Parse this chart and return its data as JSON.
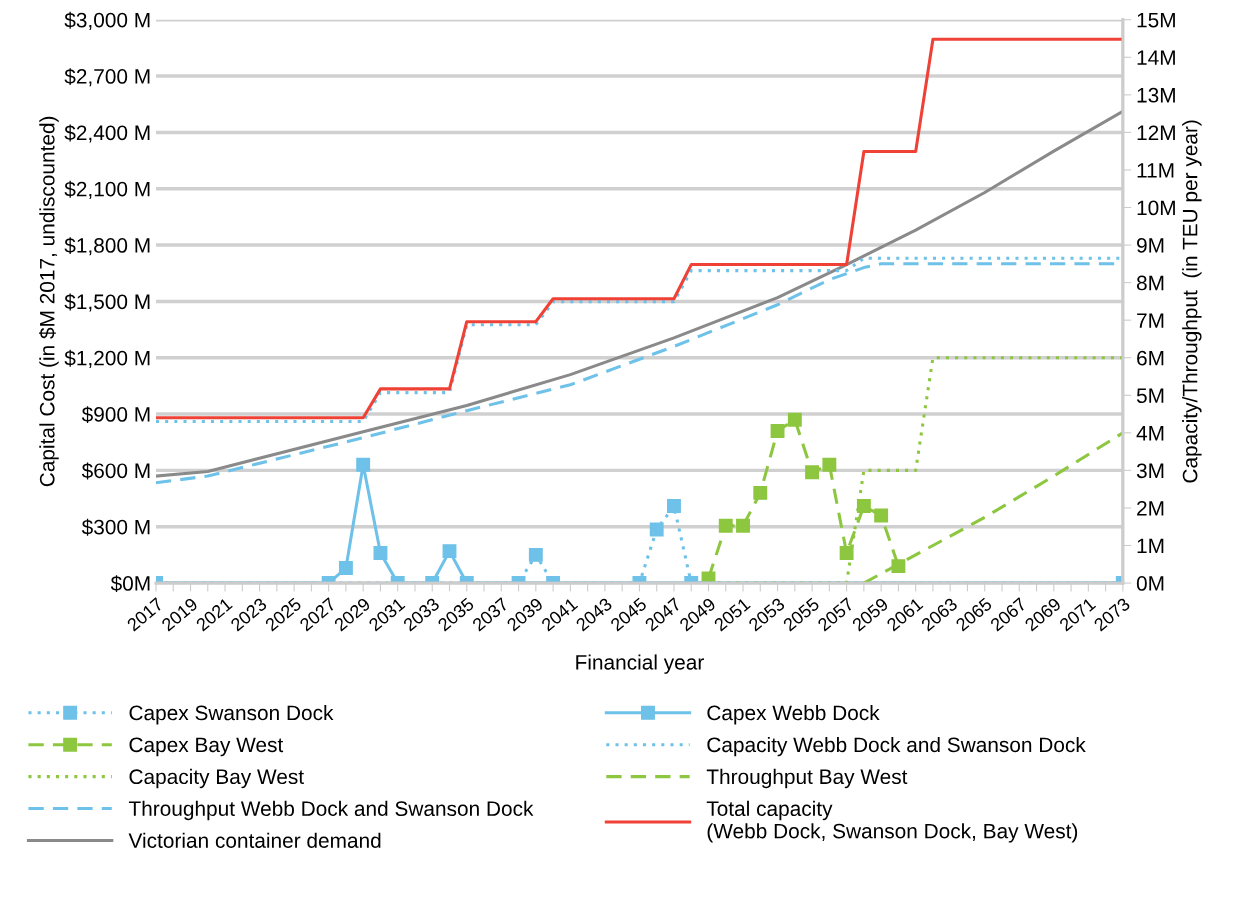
{
  "chart_data": {
    "type": "line",
    "xlabel": "Financial year",
    "ylabel": "Capital Cost (in $M 2017, undiscounted)",
    "y2label": "Capacity/Throughput  (in TEU per year)",
    "xlim": [
      2017,
      2073
    ],
    "xticks": [
      2017,
      {
        "value": 2018,
        "label": null
      },
      2019,
      {
        "value": 2020,
        "label": null
      },
      2021,
      {
        "value": 2022,
        "label": null
      },
      2023,
      {
        "value": 2024,
        "label": null
      },
      2025,
      {
        "value": 2026,
        "label": null
      },
      2027,
      {
        "value": 2028,
        "label": null
      },
      2029,
      {
        "value": 2030,
        "label": null
      },
      2031,
      {
        "value": 2032,
        "label": null
      },
      2033,
      {
        "value": 2034,
        "label": null
      },
      2035,
      {
        "value": 2036,
        "label": null
      },
      2037,
      {
        "value": 2038,
        "label": null
      },
      2039,
      {
        "value": 2040,
        "label": null
      },
      2041,
      {
        "value": 2042,
        "label": null
      },
      2043,
      {
        "value": 2044,
        "label": null
      },
      2045,
      {
        "value": 2046,
        "label": null
      },
      2047,
      {
        "value": 2048,
        "label": null
      },
      2049,
      {
        "value": 2050,
        "label": null
      },
      2051,
      {
        "value": 2052,
        "label": null
      },
      2053,
      {
        "value": 2054,
        "label": null
      },
      2055,
      {
        "value": 2056,
        "label": null
      },
      2057,
      {
        "value": 2058,
        "label": null
      },
      2059,
      {
        "value": 2060,
        "label": null
      },
      2061,
      {
        "value": 2062,
        "label": null
      },
      2063,
      {
        "value": 2064,
        "label": null
      },
      2065,
      {
        "value": 2066,
        "label": null
      },
      2067,
      {
        "value": 2068,
        "label": null
      },
      2069,
      {
        "value": 2070,
        "label": null
      },
      2071,
      {
        "value": 2072,
        "label": null
      },
      2073
    ],
    "ylim": [
      0,
      3000
    ],
    "yticks": [
      {
        "value": 0,
        "label": "$0M"
      },
      {
        "value": 300,
        "label": "$300 M"
      },
      {
        "value": 600,
        "label": "$600 M"
      },
      {
        "value": 900,
        "label": "$900 M"
      },
      {
        "value": 1200,
        "label": "$1,200 M"
      },
      {
        "value": 1500,
        "label": "$1,500 M"
      },
      {
        "value": 1800,
        "label": "$1,800 M"
      },
      {
        "value": 2100,
        "label": "$2,100 M"
      },
      {
        "value": 2400,
        "label": "$2,400 M"
      },
      {
        "value": 2700,
        "label": "$2,700 M"
      },
      {
        "value": 3000,
        "label": "$3,000 M"
      }
    ],
    "y2lim": [
      0,
      15
    ],
    "y2ticks": [
      {
        "value": 0,
        "label": "0M"
      },
      {
        "value": 1,
        "label": "1M"
      },
      {
        "value": 2,
        "label": "2M"
      },
      {
        "value": 3,
        "label": "3M"
      },
      {
        "value": 4,
        "label": "4M"
      },
      {
        "value": 5,
        "label": "5M"
      },
      {
        "value": 6,
        "label": "6M"
      },
      {
        "value": 7,
        "label": "7M"
      },
      {
        "value": 8,
        "label": "8M"
      },
      {
        "value": 9,
        "label": "9M"
      },
      {
        "value": 10,
        "label": "10M"
      },
      {
        "value": 11,
        "label": "11M"
      },
      {
        "value": 12,
        "label": "12M"
      },
      {
        "value": 13,
        "label": "13M"
      },
      {
        "value": 14,
        "label": "14M"
      },
      {
        "value": 15,
        "label": "15M"
      }
    ],
    "grid": "y",
    "legend": "bottom",
    "series": [
      {
        "name": "Capex Swanson Dock",
        "color": "#6ec1e8",
        "marker": "square",
        "line_style": "dotted",
        "x": [
          2017,
          2038,
          2039,
          2040,
          2045,
          2046,
          2047,
          2048,
          2073
        ],
        "values": [
          0,
          0,
          150,
          0,
          0,
          285,
          410,
          0,
          0
        ]
      },
      {
        "name": "Capex Bay West",
        "color": "#8dc63f",
        "marker": "square",
        "line_style": "dashed",
        "x": [
          2049,
          2050,
          2051,
          2052,
          2053,
          2054,
          2055,
          2056,
          2057,
          2058,
          2059,
          2060
        ],
        "values": [
          25,
          305,
          305,
          480,
          810,
          870,
          590,
          630,
          160,
          410,
          360,
          90
        ]
      },
      {
        "name": "Capacity Bay West",
        "color": "#8dc63f",
        "marker": "none",
        "line_style": "dotted",
        "axis": "y2",
        "x": [
          2049,
          2057,
          2058,
          2061,
          2062,
          2073
        ],
        "values": [
          0,
          0,
          3,
          3,
          6,
          6
        ]
      },
      {
        "name": "Throughput Webb Dock and Swanson Dock",
        "color": "#6ec1e8",
        "marker": "none",
        "line_style": "dashed",
        "axis": "y2",
        "x": [
          2017,
          2020,
          2029,
          2035,
          2041,
          2047,
          2053,
          2056,
          2058,
          2059,
          2073
        ],
        "values": [
          2.67,
          2.85,
          3.87,
          4.59,
          5.28,
          6.3,
          7.41,
          8.08,
          8.4,
          8.5,
          8.5
        ]
      },
      {
        "name": "Victorian container demand",
        "color": "#8a8a8a",
        "marker": "none",
        "line_style": "solid",
        "axis": "y2",
        "x": [
          2017,
          2020,
          2029,
          2035,
          2041,
          2047,
          2053,
          2057,
          2061,
          2065,
          2069,
          2073
        ],
        "values": [
          2.85,
          2.97,
          4.03,
          4.73,
          5.55,
          6.53,
          7.6,
          8.48,
          9.4,
          10.4,
          11.5,
          12.56
        ]
      },
      {
        "name": "Capex Webb Dock",
        "color": "#6ec1e8",
        "marker": "square",
        "line_style": "solid",
        "x": [
          2017,
          2027,
          2028,
          2029,
          2030,
          2031,
          2033,
          2034,
          2035,
          2073
        ],
        "values": [
          0,
          0,
          80,
          630,
          160,
          0,
          0,
          170,
          0,
          0
        ]
      },
      {
        "name": "Capacity Webb Dock and Swanson Dock",
        "color": "#6ec1e8",
        "marker": "none",
        "line_style": "dotted",
        "axis": "y2",
        "x": [
          2017,
          2029,
          2030,
          2034,
          2035,
          2039,
          2040,
          2047,
          2048,
          2057,
          2058,
          2073
        ],
        "values": [
          4.3,
          4.3,
          5.07,
          5.07,
          6.88,
          6.88,
          7.49,
          7.49,
          8.32,
          8.32,
          8.65,
          8.65
        ]
      },
      {
        "name": "Throughput Bay West",
        "color": "#8dc63f",
        "marker": "none",
        "line_style": "dashed",
        "axis": "y2",
        "x": [
          2058,
          2061,
          2065,
          2069,
          2073
        ],
        "values": [
          0,
          0.75,
          1.75,
          2.85,
          4.0
        ]
      },
      {
        "name": "Total capacity\n(Webb Dock, Swanson Dock, Bay West)",
        "color": "#ef4135",
        "marker": "none",
        "line_style": "solid",
        "axis": "y2",
        "x": [
          2017,
          2029,
          2030,
          2034,
          2035,
          2039,
          2040,
          2047,
          2048,
          2057,
          2058,
          2061,
          2062,
          2073
        ],
        "values": [
          4.4,
          4.4,
          5.17,
          5.17,
          6.96,
          6.96,
          7.57,
          7.57,
          8.48,
          8.48,
          11.49,
          11.49,
          14.48,
          14.48
        ]
      }
    ]
  }
}
